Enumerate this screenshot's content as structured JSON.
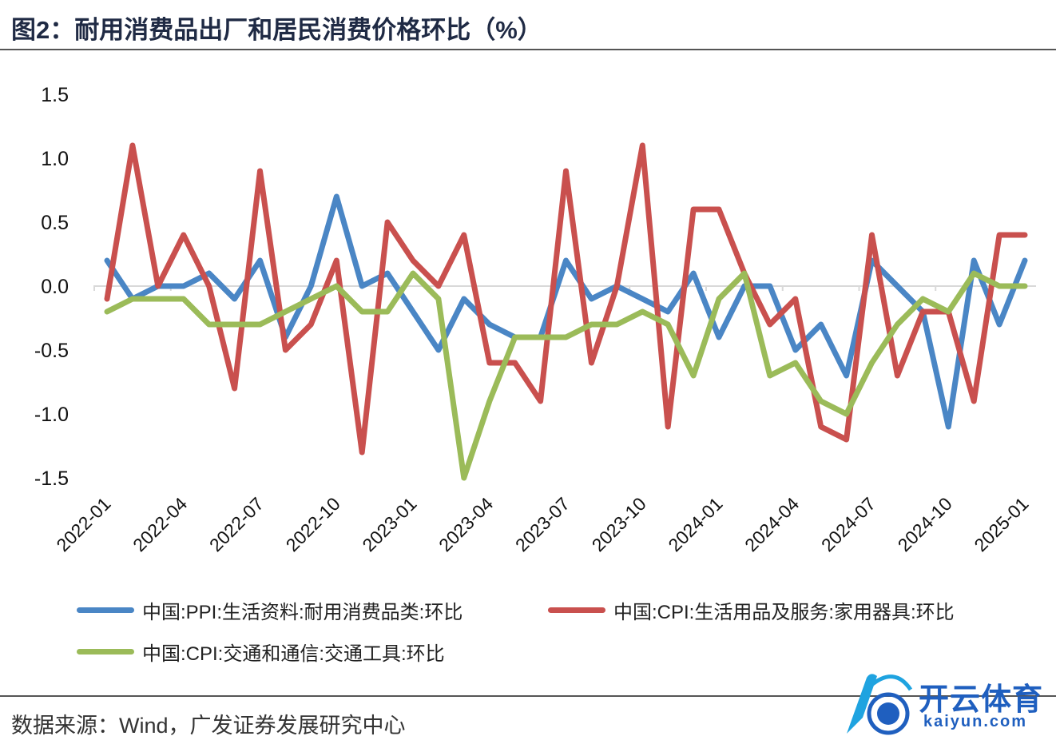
{
  "title": "图2：耐用消费品出厂和居民消费价格环比（%）",
  "source": "数据来源：Wind，广发证券发展研究中心",
  "logo": {
    "cn": "开云体育",
    "en": "kaiyun.com"
  },
  "chart_data": {
    "type": "line",
    "title": "耐用消费品出厂和居民消费价格环比（%）",
    "xlabel": "",
    "ylabel": "%",
    "ylim": [
      -1.5,
      1.5
    ],
    "yticks": [
      "1.5",
      "1.0",
      "0.5",
      "0.0",
      "-0.5",
      "-1.0",
      "-1.5"
    ],
    "ytick_values": [
      1.5,
      1.0,
      0.5,
      0.0,
      -0.5,
      -1.0,
      -1.5
    ],
    "x": [
      "2022-01",
      "2022-02",
      "2022-03",
      "2022-04",
      "2022-05",
      "2022-06",
      "2022-07",
      "2022-08",
      "2022-09",
      "2022-10",
      "2022-11",
      "2022-12",
      "2023-01",
      "2023-02",
      "2023-03",
      "2023-04",
      "2023-05",
      "2023-06",
      "2023-07",
      "2023-08",
      "2023-09",
      "2023-10",
      "2023-11",
      "2023-12",
      "2024-01",
      "2024-02",
      "2024-03",
      "2024-04",
      "2024-05",
      "2024-06",
      "2024-07",
      "2024-08",
      "2024-09",
      "2024-10",
      "2024-11",
      "2024-12",
      "2025-01"
    ],
    "xtick_labels": [
      "2022-01",
      "2022-04",
      "2022-07",
      "2022-10",
      "2023-01",
      "2023-04",
      "2023-07",
      "2023-10",
      "2024-01",
      "2024-04",
      "2024-07",
      "2024-10",
      "2025-01"
    ],
    "grid": false,
    "legend_position": "bottom",
    "series": [
      {
        "name": "中国:PPI:生活资料:耐用消费品类:环比",
        "color": "#4a86c5",
        "values": [
          0.2,
          -0.1,
          0.0,
          0.0,
          0.1,
          -0.1,
          0.2,
          -0.4,
          0.0,
          0.7,
          0.0,
          0.1,
          -0.2,
          -0.5,
          -0.1,
          -0.3,
          -0.4,
          -0.4,
          0.2,
          -0.1,
          0.0,
          -0.1,
          -0.2,
          0.1,
          -0.4,
          0.0,
          0.0,
          -0.5,
          -0.3,
          -0.7,
          0.2,
          0.0,
          -0.2,
          -1.1,
          0.2,
          -0.3,
          0.2
        ]
      },
      {
        "name": "中国:CPI:生活用品及服务:家用器具:环比",
        "color": "#c9504e",
        "values": [
          -0.1,
          1.1,
          0.0,
          0.4,
          0.0,
          -0.8,
          0.9,
          -0.5,
          -0.3,
          0.2,
          -1.3,
          0.5,
          0.2,
          0.0,
          0.4,
          -0.6,
          -0.6,
          -0.9,
          0.9,
          -0.6,
          0.0,
          1.1,
          -1.1,
          0.6,
          0.6,
          0.1,
          -0.3,
          -0.1,
          -1.1,
          -1.2,
          0.4,
          -0.7,
          -0.2,
          -0.2,
          -0.9,
          0.4,
          0.4
        ]
      },
      {
        "name": "中国:CPI:交通和通信:交通工具:环比",
        "color": "#9bbb59",
        "values": [
          -0.2,
          -0.1,
          -0.1,
          -0.1,
          -0.3,
          -0.3,
          -0.3,
          -0.2,
          -0.1,
          0.0,
          -0.2,
          -0.2,
          0.1,
          -0.1,
          -1.5,
          -0.9,
          -0.4,
          -0.4,
          -0.4,
          -0.3,
          -0.3,
          -0.2,
          -0.3,
          -0.7,
          -0.1,
          0.1,
          -0.7,
          -0.6,
          -0.9,
          -1.0,
          -0.6,
          -0.3,
          -0.1,
          -0.2,
          0.1,
          0.0,
          0.0
        ]
      }
    ]
  }
}
